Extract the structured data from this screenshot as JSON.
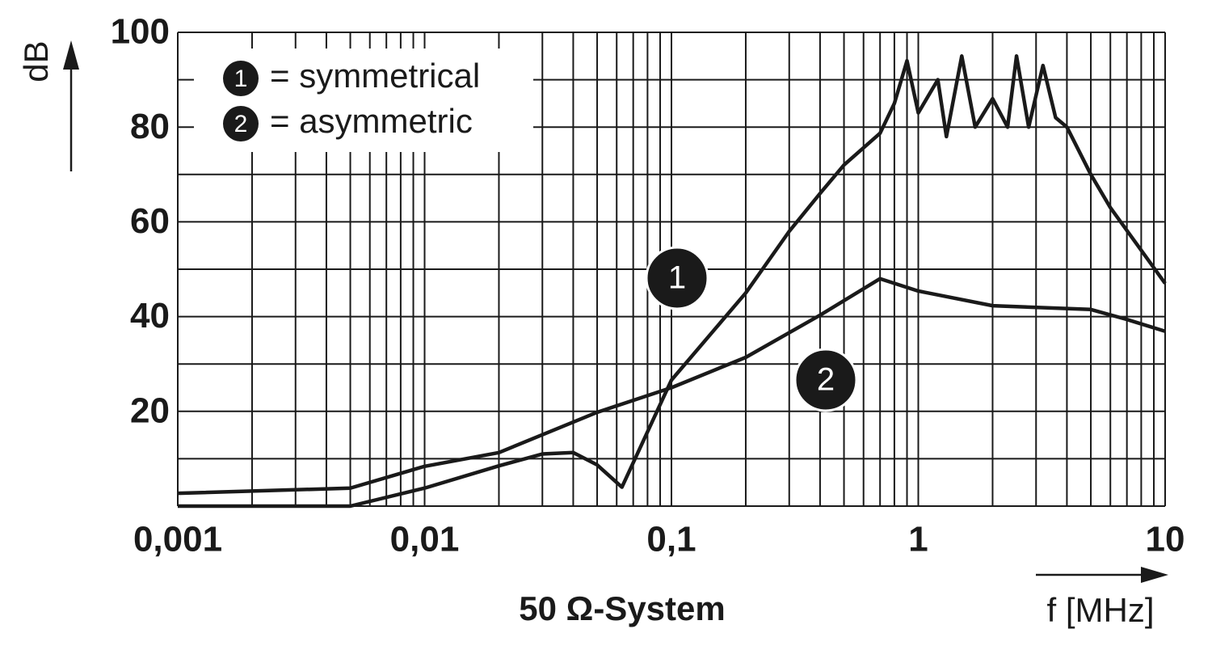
{
  "chart_data": {
    "type": "line",
    "xlabel": "f [MHz]",
    "ylabel": "dB",
    "caption": "50 Ω-System",
    "xscale": "log",
    "xlim": [
      0.001,
      10
    ],
    "ylim": [
      0,
      100
    ],
    "xticks": [
      {
        "value": 0.001,
        "label": "0,001"
      },
      {
        "value": 0.01,
        "label": "0,01"
      },
      {
        "value": 0.1,
        "label": "0,1"
      },
      1,
      10
    ],
    "yticks": [
      20,
      40,
      60,
      80,
      100
    ],
    "xgrid": [
      0.001,
      0.002,
      0.003,
      0.004,
      0.005,
      0.006,
      0.007,
      0.008,
      0.009,
      0.01,
      0.02,
      0.03,
      0.04,
      0.05,
      0.06,
      0.07,
      0.08,
      0.09,
      0.1,
      0.2,
      0.3,
      0.4,
      0.5,
      0.6,
      0.7,
      0.8,
      0.9,
      1,
      2,
      3,
      4,
      5,
      6,
      7,
      8,
      9,
      10
    ],
    "ygrid": [
      0,
      10,
      20,
      30,
      40,
      50,
      60,
      70,
      80,
      90,
      100
    ],
    "grid": true,
    "legend": "upper left",
    "series": [
      {
        "name": "= symmetrical",
        "marker": "1",
        "color": "#1a1a1a",
        "x": [
          0.001,
          0.005,
          0.01,
          0.02,
          0.03,
          0.04,
          0.05,
          0.063,
          0.1,
          0.2,
          0.3,
          0.4,
          0.5,
          0.7,
          0.8,
          0.9,
          1.0,
          1.2,
          1.3,
          1.5,
          1.7,
          2.0,
          2.3,
          2.5,
          2.8,
          3.2,
          3.6,
          4.0,
          5.0,
          6.0,
          8.0,
          10
        ],
        "values": [
          0,
          0,
          3.8,
          8.5,
          11,
          11.3,
          8.7,
          4,
          26.6,
          45,
          58,
          66,
          72,
          78.7,
          85,
          94,
          83,
          90,
          78,
          95,
          80,
          86,
          80,
          95,
          80,
          93,
          82,
          80,
          70,
          63,
          54,
          47
        ]
      },
      {
        "name": "= asymmetric",
        "marker": "2",
        "color": "#1a1a1a",
        "x": [
          0.001,
          0.005,
          0.01,
          0.02,
          0.05,
          0.1,
          0.2,
          0.4,
          0.7,
          1,
          2,
          5,
          7,
          10
        ],
        "values": [
          2.7,
          3.8,
          8.4,
          11.3,
          19.8,
          25,
          31.4,
          40.3,
          48,
          45.4,
          42.3,
          41.5,
          39.4,
          36.9
        ]
      }
    ]
  }
}
